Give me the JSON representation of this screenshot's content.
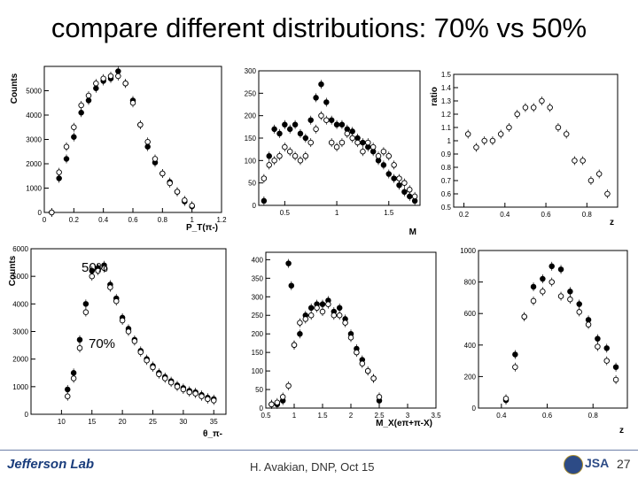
{
  "slide": {
    "title": "compare different distributions: 70% vs 50%",
    "footer": "H. Avakian, DNP,  Oct 15",
    "page_number": "27",
    "logo_text": "Jefferson Lab",
    "seal_text": "JSA",
    "overlay_50": "50%",
    "overlay_70": "70%"
  },
  "chart_data": [
    {
      "id": "pt",
      "type": "scatter",
      "title": "",
      "xlabel": "P_T(π-)",
      "ylabel": "Counts",
      "xlim": [
        0,
        1.2
      ],
      "ylim": [
        0,
        6000
      ],
      "xticks": [
        0,
        0.2,
        0.4,
        0.6,
        0.8,
        1,
        1.2
      ],
      "yticks": [
        0,
        1000,
        2000,
        3000,
        4000,
        5000
      ],
      "series": [
        {
          "marker": "filled",
          "x": [
            0.05,
            0.1,
            0.15,
            0.2,
            0.25,
            0.3,
            0.35,
            0.4,
            0.45,
            0.5,
            0.55,
            0.6,
            0.65,
            0.7,
            0.75,
            0.8,
            0.85,
            0.9,
            0.95,
            1.0
          ],
          "y": [
            0,
            1400,
            2200,
            3100,
            4100,
            4600,
            5100,
            5400,
            5500,
            5800,
            5300,
            4600,
            3600,
            2700,
            2050,
            1600,
            1250,
            850,
            450,
            250
          ]
        },
        {
          "marker": "open",
          "x": [
            0.05,
            0.1,
            0.15,
            0.2,
            0.25,
            0.3,
            0.35,
            0.4,
            0.45,
            0.5,
            0.55,
            0.6,
            0.65,
            0.7,
            0.75,
            0.8,
            0.85,
            0.9,
            0.95,
            1.0
          ],
          "y": [
            0,
            1650,
            2700,
            3500,
            4400,
            4800,
            5300,
            5500,
            5600,
            5600,
            5300,
            4500,
            3600,
            2900,
            2200,
            1600,
            1200,
            850,
            500,
            280
          ]
        }
      ]
    },
    {
      "id": "mpipi",
      "type": "scatter",
      "title": "",
      "xlabel": "M",
      "ylabel": "",
      "xlim": [
        0.25,
        1.8
      ],
      "ylim": [
        0,
        300
      ],
      "xticks": [
        0.5,
        1,
        1.5
      ],
      "yticks": [
        0,
        50,
        100,
        150,
        200,
        250,
        300
      ],
      "series": [
        {
          "marker": "filled",
          "x": [
            0.3,
            0.35,
            0.4,
            0.45,
            0.5,
            0.55,
            0.6,
            0.65,
            0.7,
            0.75,
            0.8,
            0.85,
            0.9,
            0.95,
            1.0,
            1.05,
            1.1,
            1.15,
            1.2,
            1.25,
            1.3,
            1.35,
            1.4,
            1.45,
            1.5,
            1.55,
            1.6,
            1.65,
            1.7,
            1.75
          ],
          "y": [
            10,
            110,
            170,
            160,
            180,
            170,
            180,
            160,
            150,
            190,
            240,
            270,
            230,
            190,
            180,
            180,
            170,
            165,
            150,
            140,
            130,
            120,
            100,
            90,
            70,
            60,
            45,
            30,
            20,
            10
          ]
        },
        {
          "marker": "open",
          "x": [
            0.3,
            0.35,
            0.4,
            0.45,
            0.5,
            0.55,
            0.6,
            0.65,
            0.7,
            0.75,
            0.8,
            0.85,
            0.9,
            0.95,
            1.0,
            1.05,
            1.1,
            1.15,
            1.2,
            1.25,
            1.3,
            1.35,
            1.4,
            1.45,
            1.5,
            1.55,
            1.6,
            1.65,
            1.7,
            1.75
          ],
          "y": [
            60,
            90,
            100,
            110,
            130,
            120,
            110,
            100,
            110,
            140,
            170,
            200,
            190,
            140,
            130,
            140,
            160,
            150,
            140,
            120,
            140,
            130,
            110,
            120,
            110,
            90,
            60,
            50,
            35,
            20
          ]
        }
      ]
    },
    {
      "id": "ratio",
      "type": "scatter",
      "title": "",
      "xlabel": "z",
      "ylabel": "ratio",
      "xlim": [
        0.15,
        0.95
      ],
      "ylim": [
        0.5,
        1.5
      ],
      "xticks": [
        0.2,
        0.4,
        0.6,
        0.8
      ],
      "yticks": [
        0.5,
        0.6,
        0.7,
        0.8,
        0.9,
        1,
        1.1,
        1.2,
        1.3,
        1.4,
        1.5
      ],
      "series": [
        {
          "marker": "open",
          "x": [
            0.22,
            0.26,
            0.3,
            0.34,
            0.38,
            0.42,
            0.46,
            0.5,
            0.54,
            0.58,
            0.62,
            0.66,
            0.7,
            0.74,
            0.78,
            0.82,
            0.86,
            0.9
          ],
          "y": [
            1.05,
            0.95,
            1.0,
            1.0,
            1.05,
            1.1,
            1.2,
            1.25,
            1.25,
            1.3,
            1.25,
            1.1,
            1.05,
            0.85,
            0.85,
            0.7,
            0.75,
            0.6
          ]
        }
      ]
    },
    {
      "id": "theta",
      "type": "scatter",
      "title": "",
      "xlabel": "θ_π-",
      "ylabel": "Counts",
      "xlim": [
        5,
        37
      ],
      "ylim": [
        0,
        6000
      ],
      "xticks": [
        10,
        15,
        20,
        25,
        30,
        35
      ],
      "yticks": [
        0,
        1000,
        2000,
        3000,
        4000,
        5000,
        6000
      ],
      "series": [
        {
          "marker": "filled",
          "x": [
            11,
            12,
            13,
            14,
            15,
            16,
            17,
            18,
            19,
            20,
            21,
            22,
            23,
            24,
            25,
            26,
            27,
            28,
            29,
            30,
            31,
            32,
            33,
            34,
            35
          ],
          "y": [
            900,
            1500,
            2700,
            4000,
            5200,
            5300,
            5400,
            4700,
            4200,
            3500,
            3100,
            2700,
            2300,
            2000,
            1750,
            1500,
            1350,
            1200,
            1050,
            950,
            850,
            800,
            700,
            600,
            550
          ]
        },
        {
          "marker": "open",
          "x": [
            11,
            12,
            13,
            14,
            15,
            16,
            17,
            18,
            19,
            20,
            21,
            22,
            23,
            24,
            25,
            26,
            27,
            28,
            29,
            30,
            31,
            32,
            33,
            34,
            35
          ],
          "y": [
            650,
            1300,
            2400,
            3700,
            5000,
            5200,
            5300,
            4600,
            4100,
            3400,
            3000,
            2650,
            2250,
            1950,
            1700,
            1450,
            1300,
            1150,
            1000,
            900,
            800,
            750,
            650,
            550,
            500
          ]
        }
      ]
    },
    {
      "id": "mx",
      "type": "scatter",
      "title": "",
      "xlabel": "M_X(eπ+π-X)",
      "ylabel": "",
      "xlim": [
        0.5,
        3.5
      ],
      "ylim": [
        0,
        420
      ],
      "xticks": [
        0.5,
        1,
        1.5,
        2,
        2.5,
        3,
        3.5
      ],
      "yticks": [
        0,
        50,
        100,
        150,
        200,
        250,
        300,
        350,
        400
      ],
      "series": [
        {
          "marker": "filled",
          "x": [
            0.6,
            0.7,
            0.8,
            0.9,
            0.95,
            1.0,
            1.1,
            1.2,
            1.3,
            1.4,
            1.5,
            1.6,
            1.7,
            1.8,
            1.9,
            2.0,
            2.1,
            2.2,
            2.3,
            2.4,
            2.5
          ],
          "y": [
            10,
            10,
            20,
            390,
            330,
            170,
            200,
            250,
            270,
            280,
            280,
            290,
            260,
            270,
            240,
            200,
            160,
            130,
            100,
            80,
            20
          ]
        },
        {
          "marker": "open",
          "x": [
            0.6,
            0.7,
            0.8,
            0.9,
            1.0,
            1.1,
            1.2,
            1.3,
            1.4,
            1.5,
            1.6,
            1.7,
            1.8,
            1.9,
            2.0,
            2.1,
            2.2,
            2.3,
            2.4,
            2.5
          ],
          "y": [
            10,
            15,
            30,
            60,
            170,
            230,
            240,
            250,
            270,
            260,
            280,
            250,
            250,
            230,
            190,
            150,
            120,
            100,
            80,
            30
          ]
        }
      ]
    },
    {
      "id": "z",
      "type": "scatter",
      "title": "",
      "xlabel": "z",
      "ylabel": "",
      "xlim": [
        0.3,
        0.95
      ],
      "ylim": [
        0,
        1000
      ],
      "xticks": [
        0.4,
        0.6,
        0.8
      ],
      "yticks": [
        0,
        200,
        400,
        600,
        800,
        1000
      ],
      "series": [
        {
          "marker": "filled",
          "x": [
            0.42,
            0.46,
            0.5,
            0.54,
            0.58,
            0.62,
            0.66,
            0.7,
            0.74,
            0.78,
            0.82,
            0.86,
            0.9
          ],
          "y": [
            50,
            340,
            580,
            770,
            820,
            900,
            880,
            740,
            660,
            560,
            440,
            380,
            260
          ]
        },
        {
          "marker": "open",
          "x": [
            0.42,
            0.46,
            0.5,
            0.54,
            0.58,
            0.62,
            0.66,
            0.7,
            0.74,
            0.78,
            0.82,
            0.86,
            0.9
          ],
          "y": [
            60,
            260,
            580,
            680,
            740,
            800,
            710,
            690,
            610,
            530,
            390,
            300,
            180
          ]
        }
      ]
    }
  ]
}
